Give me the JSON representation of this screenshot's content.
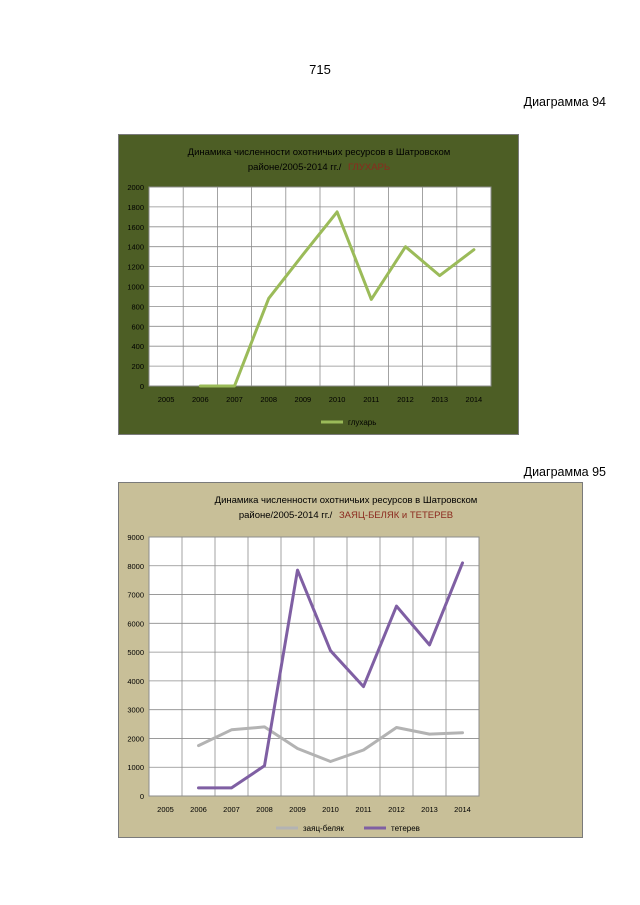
{
  "page_number": "715",
  "diagrams": [
    {
      "label": "Диаграмма 94",
      "title_line1": "Динамика численности охотничьих ресурсов  в  Шатровском",
      "title_line2_prefix": "районе/2005-2014 гг./",
      "title_line2_highlight": "ГЛУХАРЬ"
    },
    {
      "label": "Диаграмма 95",
      "title_line1": "Динамика численности  охотничьих ресурсов   в  Шатровском",
      "title_line2_prefix": "районе/2005-2014  гг./",
      "title_line2_highlight": "ЗАЯЦ-БЕЛЯК и ТЕТЕРЕВ"
    }
  ],
  "colors": {
    "chart1_background": "#4d5e25",
    "chart1_plot": "#ffffff",
    "chart2_background": "#c8bf98",
    "chart2_plot": "#ffffff",
    "highlight_text": "#8b2a1e",
    "capercaillie_line": "#9bbb59",
    "hare_line": "#b3b3b3",
    "black_grouse_line": "#7f5fa3"
  },
  "chart_data": [
    {
      "type": "line",
      "categories": [
        "2005",
        "2006",
        "2007",
        "2008",
        "2009",
        "2010",
        "2011",
        "2012",
        "2013",
        "2014"
      ],
      "ylim": [
        0,
        2000
      ],
      "yticks": [
        "0",
        "200",
        "400",
        "600",
        "800",
        "1000",
        "1200",
        "1400",
        "1600",
        "1800",
        "2000"
      ],
      "grid": true,
      "legend_position": "bottom",
      "series": [
        {
          "name": "глухарь",
          "values": [
            null,
            0,
            0,
            880,
            1320,
            1750,
            870,
            1400,
            1110,
            1370
          ]
        }
      ]
    },
    {
      "type": "line",
      "categories": [
        "2005",
        "2006",
        "2007",
        "2008",
        "2009",
        "2010",
        "2011",
        "2012",
        "2013",
        "2014"
      ],
      "ylim": [
        0,
        9000
      ],
      "yticks": [
        "0",
        "1000",
        "2000",
        "3000",
        "4000",
        "5000",
        "6000",
        "7000",
        "8000",
        "9000"
      ],
      "grid": true,
      "legend_position": "bottom",
      "series": [
        {
          "name": "заяц-беляк",
          "values": [
            null,
            1750,
            2300,
            2400,
            1650,
            1200,
            1600,
            2380,
            2150,
            2200
          ]
        },
        {
          "name": "тетерев",
          "values": [
            null,
            280,
            280,
            1050,
            7850,
            5050,
            3800,
            6600,
            5250,
            8100
          ]
        }
      ]
    }
  ]
}
